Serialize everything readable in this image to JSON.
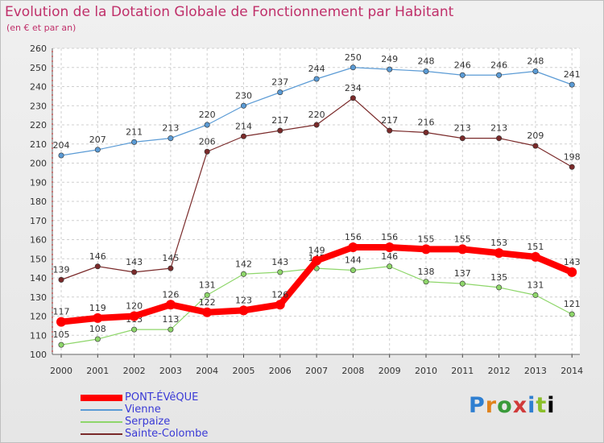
{
  "chart_data": {
    "type": "line",
    "title": "Evolution de la Dotation Globale de Fonctionnement par Habitant",
    "subtitle": "(en € et par an)",
    "categories": [
      "2000",
      "2001",
      "2002",
      "2003",
      "2004",
      "2005",
      "2006",
      "2007",
      "2008",
      "2009",
      "2010",
      "2011",
      "2012",
      "2013",
      "2014"
    ],
    "ylim": [
      100,
      260
    ],
    "yticks": [
      100,
      110,
      120,
      130,
      140,
      150,
      160,
      170,
      180,
      190,
      200,
      210,
      220,
      230,
      240,
      250,
      260
    ],
    "grid": true,
    "series": [
      {
        "name": "Vienne",
        "color": "#5b9bd5",
        "values": [
          204,
          207,
          211,
          213,
          220,
          230,
          237,
          244,
          250,
          249,
          248,
          246,
          246,
          248,
          241
        ]
      },
      {
        "name": "Sainte-Colombe",
        "color": "#7a2a2a",
        "values": [
          139,
          146,
          143,
          145,
          206,
          214,
          217,
          220,
          234,
          217,
          216,
          213,
          213,
          209,
          198
        ]
      },
      {
        "name": "Serpaize",
        "color": "#8ed66a",
        "values": [
          105,
          108,
          113,
          113,
          131,
          142,
          143,
          145,
          144,
          146,
          138,
          137,
          135,
          131,
          121
        ]
      },
      {
        "name": "PONT-ÉVêQUE",
        "color": "#ff0000",
        "values": [
          117,
          119,
          120,
          126,
          122,
          123,
          126,
          149,
          156,
          156,
          155,
          155,
          153,
          151,
          143
        ]
      }
    ],
    "legend": [
      {
        "name": "PONT-ÉVêQUE",
        "color": "#ff0000"
      },
      {
        "name": "Vienne",
        "color": "#5b9bd5"
      },
      {
        "name": "Serpaize",
        "color": "#8ed66a"
      },
      {
        "name": "Sainte-Colombe",
        "color": "#7a2a2a"
      }
    ]
  },
  "logo": {
    "letters": [
      "P",
      "r",
      "o",
      "x",
      "i",
      "t",
      "i"
    ]
  }
}
